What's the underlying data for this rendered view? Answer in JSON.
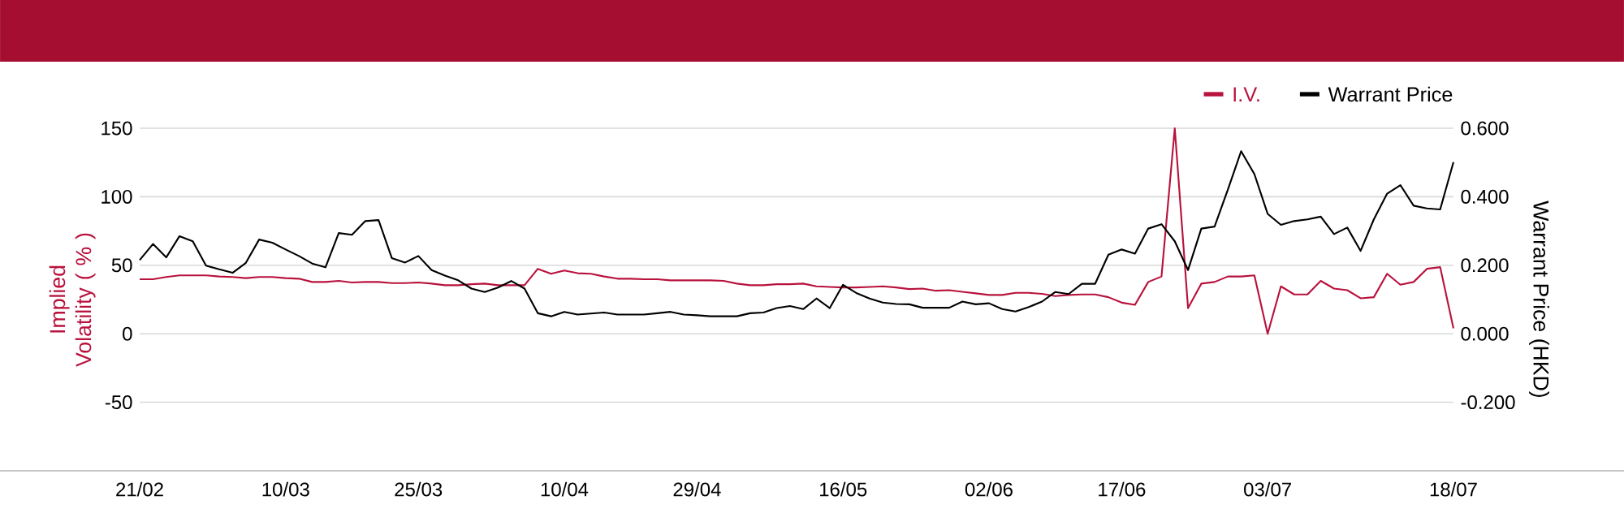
{
  "chart_data": {
    "type": "line",
    "categories": [
      "21/02",
      null,
      null,
      null,
      null,
      null,
      null,
      null,
      null,
      null,
      null,
      "10/03",
      null,
      null,
      null,
      null,
      null,
      null,
      null,
      null,
      null,
      "25/03",
      null,
      null,
      null,
      null,
      null,
      null,
      null,
      null,
      null,
      null,
      "10/04",
      null,
      null,
      null,
      null,
      null,
      null,
      null,
      null,
      null,
      "29/04",
      null,
      null,
      null,
      null,
      null,
      null,
      null,
      null,
      null,
      null,
      "16/05",
      null,
      null,
      null,
      null,
      null,
      null,
      null,
      null,
      null,
      null,
      "02/06",
      null,
      null,
      null,
      null,
      null,
      null,
      null,
      null,
      null,
      "17/06",
      null,
      null,
      null,
      null,
      null,
      null,
      null,
      null,
      null,
      null,
      "03/07",
      null,
      null,
      null,
      null,
      null,
      null,
      null,
      null,
      null,
      null,
      null,
      null,
      null,
      "18/07"
    ],
    "series": [
      {
        "name": "I.V.",
        "color": "#b8123d",
        "values": [
          39.8,
          39.8,
          41.4,
          42.6,
          42.6,
          42.6,
          41.8,
          41.4,
          40.6,
          41.4,
          41.4,
          40.6,
          40.2,
          37.8,
          37.8,
          38.6,
          37.4,
          37.8,
          37.8,
          37.0,
          37.0,
          37.4,
          36.6,
          35.4,
          35.4,
          36.2,
          36.6,
          35.4,
          35.4,
          35.4,
          47.4,
          43.8,
          46.2,
          44.2,
          43.8,
          41.8,
          40.2,
          40.2,
          39.8,
          39.8,
          39.0,
          39.0,
          39.0,
          39.0,
          38.6,
          36.6,
          35.4,
          35.4,
          36.2,
          36.2,
          36.6,
          34.6,
          34.2,
          33.8,
          33.8,
          34.2,
          34.6,
          33.8,
          32.6,
          33.0,
          31.4,
          31.8,
          30.6,
          29.5,
          28.3,
          28.3,
          29.9,
          29.9,
          29.1,
          27.5,
          28.3,
          28.7,
          28.7,
          26.7,
          22.7,
          21.1,
          37.8,
          41.8,
          150,
          18.7,
          36.6,
          37.8,
          41.8,
          41.8,
          42.6,
          0,
          34.6,
          28.7,
          28.7,
          38.6,
          33.0,
          31.8,
          25.9,
          26.7,
          43.8,
          35.8,
          37.8,
          47.4,
          48.6,
          4.0
        ]
      },
      {
        "name": "Warrant Price",
        "color": "#000000",
        "axis": "y2",
        "values": [
          0.215,
          0.262,
          0.223,
          0.285,
          0.27,
          0.199,
          0.188,
          0.178,
          0.207,
          0.275,
          0.266,
          0.246,
          0.227,
          0.205,
          0.194,
          0.294,
          0.289,
          0.329,
          0.332,
          0.221,
          0.208,
          0.227,
          0.186,
          0.17,
          0.156,
          0.132,
          0.122,
          0.135,
          0.154,
          0.132,
          0.06,
          0.051,
          0.064,
          0.056,
          0.059,
          0.062,
          0.056,
          0.056,
          0.056,
          0.06,
          0.064,
          0.056,
          0.054,
          0.051,
          0.051,
          0.051,
          0.06,
          0.062,
          0.075,
          0.081,
          0.072,
          0.103,
          0.075,
          0.143,
          0.119,
          0.103,
          0.091,
          0.087,
          0.086,
          0.076,
          0.076,
          0.076,
          0.094,
          0.086,
          0.089,
          0.072,
          0.065,
          0.078,
          0.094,
          0.122,
          0.116,
          0.146,
          0.146,
          0.231,
          0.246,
          0.234,
          0.307,
          0.32,
          0.27,
          0.186,
          0.307,
          0.313,
          0.421,
          0.533,
          0.466,
          0.35,
          0.318,
          0.329,
          0.334,
          0.342,
          0.291,
          0.31,
          0.242,
          0.334,
          0.409,
          0.434,
          0.374,
          0.366,
          0.363,
          0.501
        ]
      }
    ],
    "ylabel": "Implied Volatility ( % )",
    "y2label": "Warrant Price (HKD)",
    "ylim": [
      -100,
      150
    ],
    "yticks": [
      -50,
      0,
      50,
      100,
      150
    ],
    "y2lim": [
      -0.4,
      0.6
    ],
    "y2ticks": [
      {
        "value": -0.2,
        "label": "-0.200"
      },
      {
        "value": 0,
        "label": "0.000"
      },
      {
        "value": 0.2,
        "label": "0.200"
      },
      {
        "value": 0.4,
        "label": "0.400"
      },
      {
        "value": 0.6,
        "label": "0.600"
      }
    ],
    "grid": "y",
    "legend": "top right",
    "marker": "none"
  }
}
